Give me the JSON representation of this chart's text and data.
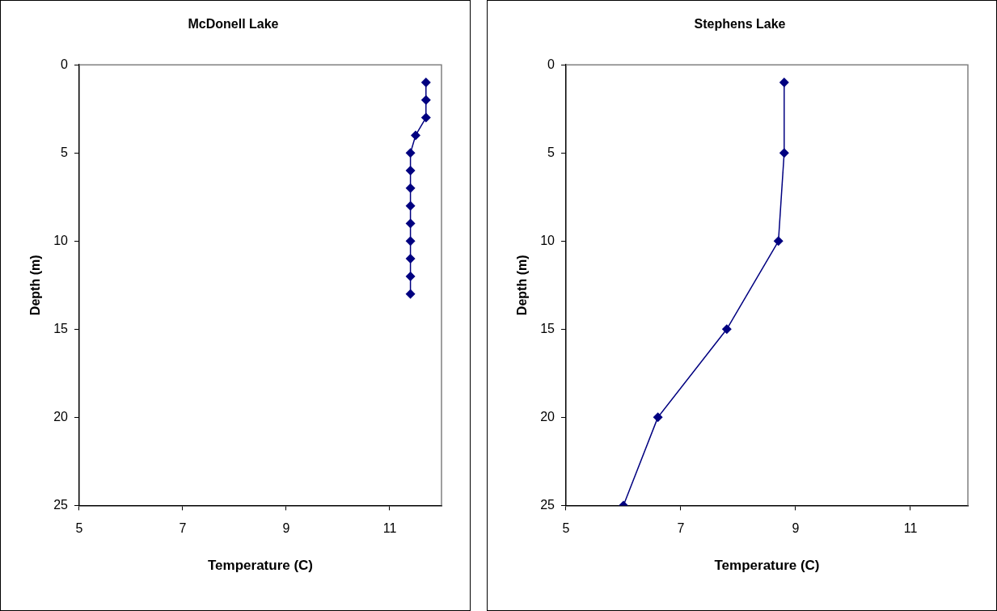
{
  "chart_data": [
    {
      "type": "line",
      "title": "McDonell Lake",
      "xlabel": "Temperature (C)",
      "ylabel": "Depth (m)",
      "x": [
        11.7,
        11.7,
        11.7,
        11.5,
        11.4,
        11.4,
        11.4,
        11.4,
        11.4,
        11.4,
        11.4,
        11.4,
        11.4
      ],
      "series": [
        {
          "color": "#000080",
          "values": [
            1,
            2,
            3,
            4,
            5,
            6,
            7,
            8,
            9,
            10,
            11,
            12,
            13
          ]
        }
      ],
      "xlim": [
        5,
        12
      ],
      "xticks": [
        5,
        7,
        9,
        11
      ],
      "ylim": [
        25,
        0
      ],
      "yticks": [
        0,
        5,
        10,
        15,
        20,
        25
      ],
      "grid": false,
      "legend": false,
      "marker": "diamond",
      "line_style": "solid"
    },
    {
      "type": "line",
      "title": "Stephens Lake",
      "xlabel": "Temperature (C)",
      "ylabel": "Depth (m)",
      "x": [
        8.8,
        8.8,
        8.7,
        7.8,
        6.6,
        6.0
      ],
      "series": [
        {
          "color": "#000080",
          "values": [
            1,
            5,
            10,
            15,
            20,
            25
          ]
        }
      ],
      "xlim": [
        5,
        12
      ],
      "xticks": [
        5,
        7,
        9,
        11
      ],
      "ylim": [
        25,
        0
      ],
      "yticks": [
        0,
        5,
        10,
        15,
        20,
        25
      ],
      "grid": false,
      "legend": false,
      "marker": "diamond",
      "line_style": "solid"
    }
  ]
}
